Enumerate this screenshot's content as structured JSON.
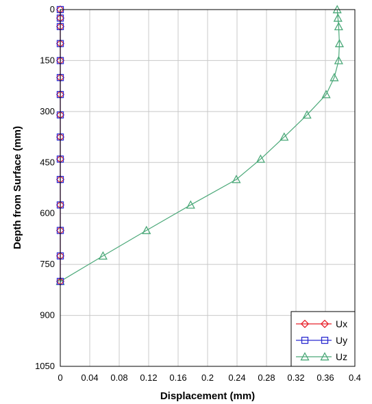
{
  "chart_data": {
    "type": "line",
    "xlabel": "Displacement (mm)",
    "ylabel": "Depth from Surface (mm)",
    "xlim": [
      0,
      0.4
    ],
    "ylim": [
      0,
      1050
    ],
    "y_inverted": true,
    "xticks": [
      0,
      0.04,
      0.08,
      0.12,
      0.16,
      0.2,
      0.24,
      0.28,
      0.32,
      0.36,
      0.4
    ],
    "xtick_labels": [
      "0",
      "0.04",
      "0.08",
      "0.12",
      "0.16",
      "0.2",
      "0.24",
      "0.28",
      "0.32",
      "0.36",
      "0.4"
    ],
    "yticks": [
      0,
      150,
      300,
      450,
      600,
      750,
      900,
      1050
    ],
    "ytick_labels": [
      "0",
      "150",
      "300",
      "450",
      "600",
      "750",
      "900",
      "1050"
    ],
    "grid": true,
    "legend_position": "bottom-right",
    "series": [
      {
        "name": "Ux",
        "color": "#e8202a",
        "marker": "diamond",
        "points": [
          [
            0,
            0
          ],
          [
            0,
            25
          ],
          [
            0,
            50
          ],
          [
            0,
            100
          ],
          [
            0,
            150
          ],
          [
            0,
            200
          ],
          [
            0,
            250
          ],
          [
            0,
            310
          ],
          [
            0,
            375
          ],
          [
            0,
            440
          ],
          [
            0,
            500
          ],
          [
            0,
            575
          ],
          [
            0,
            650
          ],
          [
            0,
            725
          ],
          [
            0,
            800
          ]
        ]
      },
      {
        "name": "Uy",
        "color": "#2a2ad0",
        "marker": "square",
        "points": [
          [
            0,
            0
          ],
          [
            0,
            25
          ],
          [
            0,
            50
          ],
          [
            0,
            100
          ],
          [
            0,
            150
          ],
          [
            0,
            200
          ],
          [
            0,
            250
          ],
          [
            0,
            310
          ],
          [
            0,
            375
          ],
          [
            0,
            440
          ],
          [
            0,
            500
          ],
          [
            0,
            575
          ],
          [
            0,
            650
          ],
          [
            0,
            725
          ],
          [
            0,
            800
          ]
        ]
      },
      {
        "name": "Uz",
        "color": "#4aa878",
        "marker": "triangle",
        "points": [
          [
            0.376,
            0
          ],
          [
            0.377,
            25
          ],
          [
            0.378,
            50
          ],
          [
            0.379,
            100
          ],
          [
            0.378,
            150
          ],
          [
            0.372,
            200
          ],
          [
            0.361,
            250
          ],
          [
            0.335,
            310
          ],
          [
            0.304,
            375
          ],
          [
            0.272,
            440
          ],
          [
            0.239,
            500
          ],
          [
            0.177,
            575
          ],
          [
            0.117,
            650
          ],
          [
            0.058,
            725
          ],
          [
            0.0,
            800
          ]
        ]
      }
    ]
  }
}
